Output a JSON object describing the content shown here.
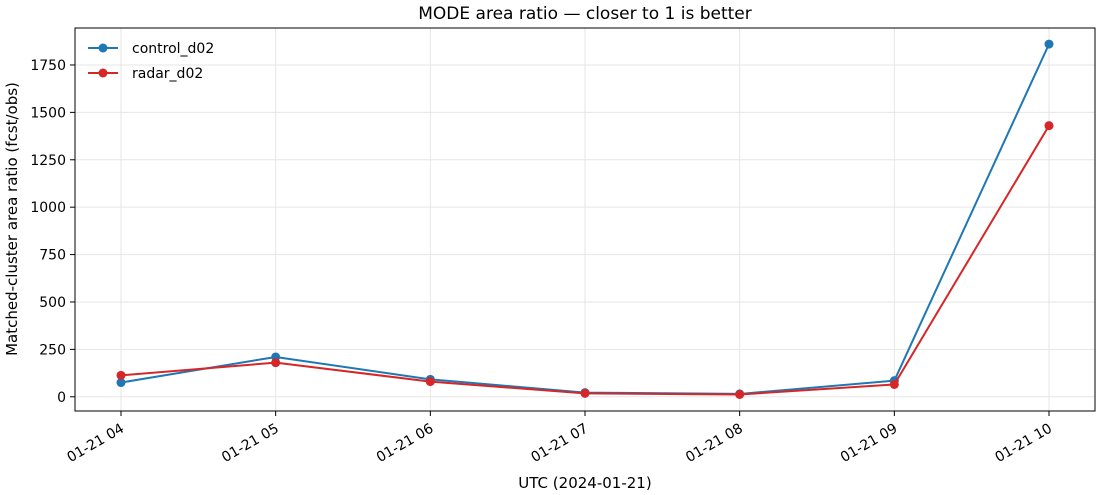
{
  "chart_data": {
    "type": "line",
    "title": "MODE area ratio — closer to 1 is better",
    "xlabel": "UTC (2024-01-21)",
    "ylabel": "Matched-cluster area ratio (fcst/obs)",
    "categories": [
      "01-21 04",
      "01-21 05",
      "01-21 06",
      "01-21 07",
      "01-21 08",
      "01-21 09",
      "01-21 10"
    ],
    "yticks": [
      0,
      250,
      500,
      750,
      1000,
      1250,
      1500,
      1750
    ],
    "ylim": [
      -75,
      1945
    ],
    "grid": true,
    "legend_position": "top-left",
    "series": [
      {
        "name": "control_d02",
        "color": "#1f77b4",
        "values": [
          75,
          210,
          92,
          22,
          15,
          85,
          1860
        ]
      },
      {
        "name": "radar_d02",
        "color": "#d62728",
        "values": [
          113,
          180,
          80,
          18,
          12,
          65,
          1430
        ]
      }
    ]
  }
}
